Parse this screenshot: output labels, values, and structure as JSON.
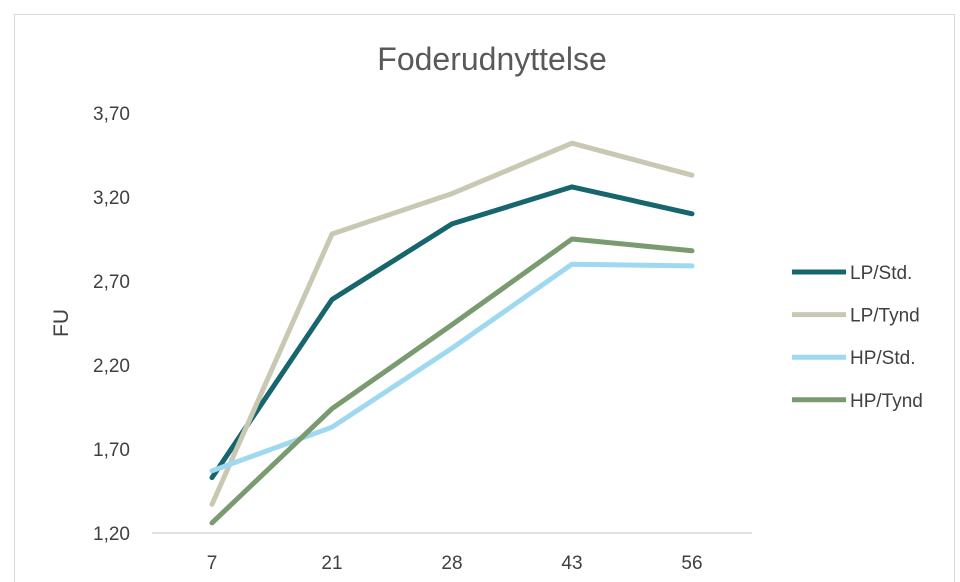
{
  "chart_data": {
    "type": "line",
    "title": "Foderudnyttelse",
    "xlabel": "",
    "ylabel": "FU",
    "categories": [
      "7",
      "21",
      "28",
      "43",
      "56"
    ],
    "ylim": [
      1.2,
      3.7
    ],
    "yticks": [
      "1,20",
      "1,70",
      "2,20",
      "2,70",
      "3,20",
      "3,70"
    ],
    "grid": false,
    "legend": "right",
    "series": [
      {
        "name": "LP/Std.",
        "color": "#17656D",
        "values": [
          1.53,
          2.59,
          3.04,
          3.26,
          3.1
        ]
      },
      {
        "name": "LP/Tynd",
        "color": "#C9C9B3",
        "values": [
          1.37,
          2.98,
          3.22,
          3.52,
          3.33
        ]
      },
      {
        "name": "HP/Std.",
        "color": "#9FD9F0",
        "values": [
          1.57,
          1.83,
          2.3,
          2.8,
          2.79
        ]
      },
      {
        "name": "HP/Tynd",
        "color": "#7A9A70",
        "values": [
          1.26,
          1.94,
          2.44,
          2.95,
          2.88
        ]
      }
    ]
  }
}
